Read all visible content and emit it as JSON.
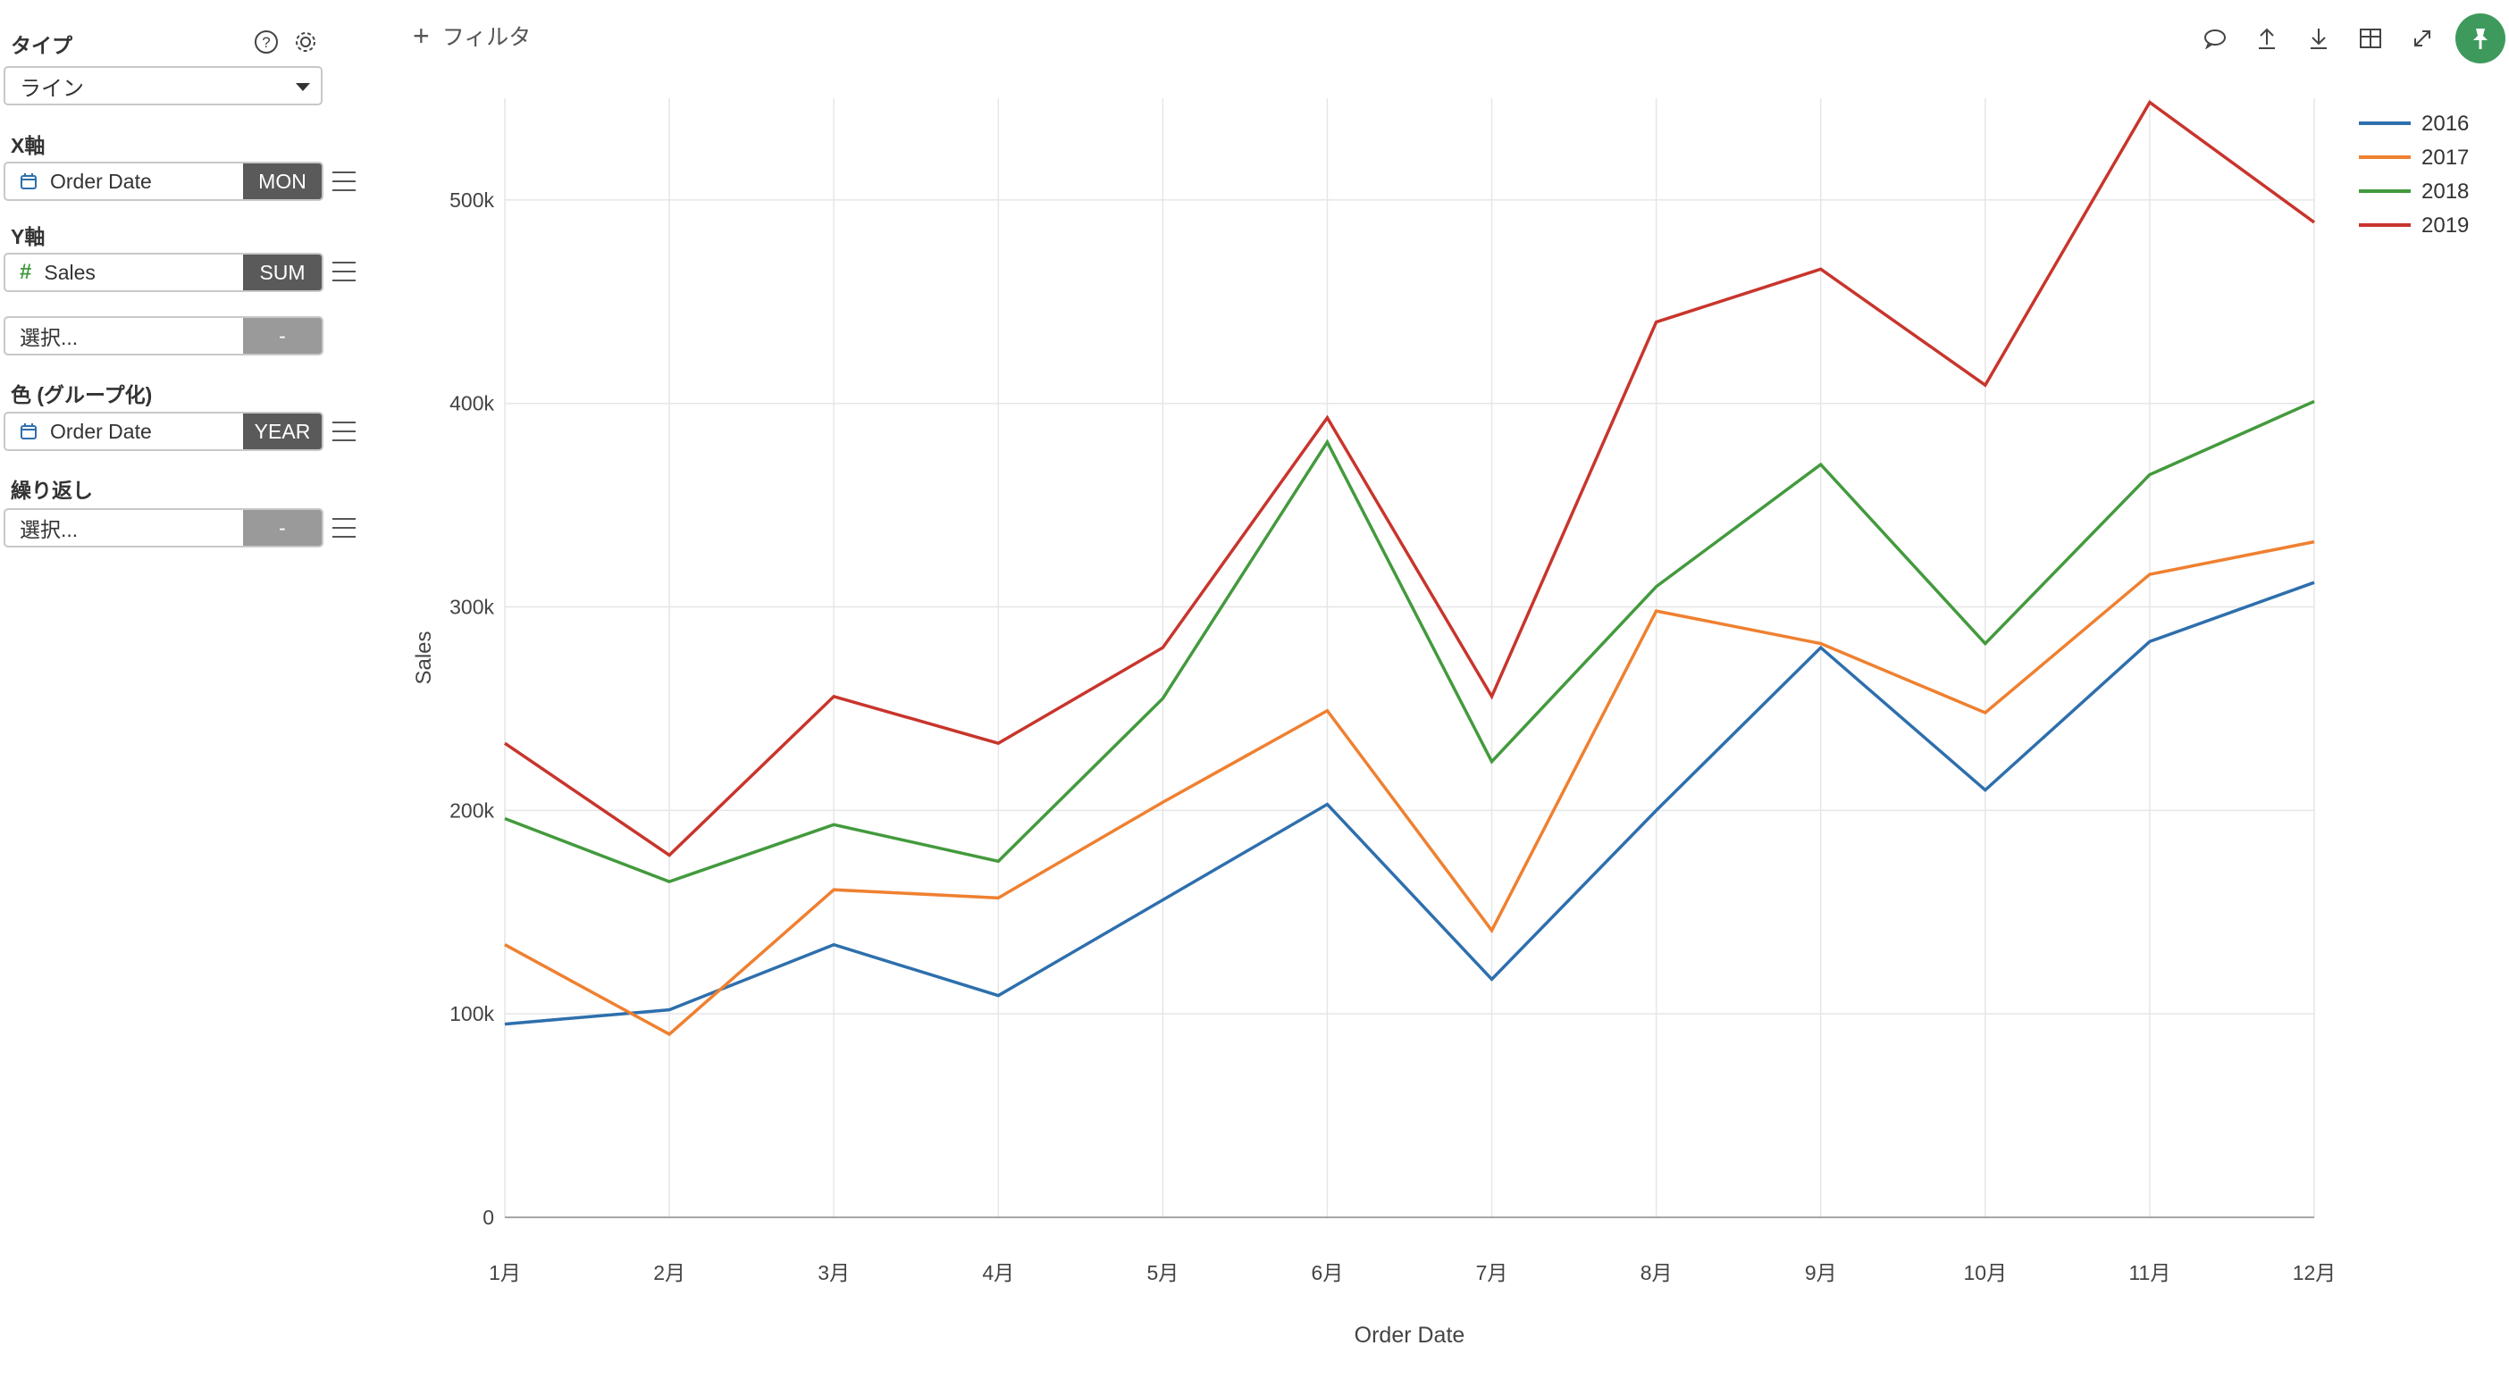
{
  "sidebar": {
    "type_label": "タイプ",
    "type_value": "ライン",
    "x_axis_label": "X軸",
    "x_field": {
      "name": "Order Date",
      "agg": "MON"
    },
    "y_axis_label": "Y軸",
    "y_field": {
      "name": "Sales",
      "agg": "SUM"
    },
    "y_field2": {
      "name": "選択...",
      "agg": "-"
    },
    "color_label": "色 (グループ化)",
    "color_field": {
      "name": "Order Date",
      "agg": "YEAR"
    },
    "repeat_label": "繰り返し",
    "repeat_field": {
      "name": "選択...",
      "agg": "-"
    }
  },
  "topbar": {
    "filter_label": "フィルタ"
  },
  "colors": {
    "s2016": "#2e6fad",
    "s2017": "#ef8030",
    "s2018": "#439a3d",
    "s2019": "#c8352c",
    "pin": "#3e9a5c"
  },
  "chart_data": {
    "type": "line",
    "xlabel": "Order Date",
    "ylabel": "Sales",
    "categories": [
      "1月",
      "2月",
      "3月",
      "4月",
      "5月",
      "6月",
      "7月",
      "8月",
      "9月",
      "10月",
      "11月",
      "12月"
    ],
    "y_ticks": [
      "0",
      "100k",
      "200k",
      "300k",
      "400k",
      "500k"
    ],
    "ylim": [
      0,
      550000
    ],
    "grid": true,
    "legend_position": "top-right",
    "series": [
      {
        "name": "2016",
        "values": [
          95000,
          102000,
          134000,
          109000,
          156000,
          203000,
          117000,
          200000,
          280000,
          210000,
          283000,
          312000
        ]
      },
      {
        "name": "2017",
        "values": [
          134000,
          90000,
          161000,
          157000,
          204000,
          249000,
          141000,
          298000,
          282000,
          248000,
          316000,
          332000
        ]
      },
      {
        "name": "2018",
        "values": [
          196000,
          165000,
          193000,
          175000,
          255000,
          381000,
          224000,
          310000,
          370000,
          282000,
          365000,
          401000
        ]
      },
      {
        "name": "2019",
        "values": [
          233000,
          178000,
          256000,
          233000,
          280000,
          393000,
          256000,
          440000,
          466000,
          409000,
          548000,
          489000
        ]
      }
    ]
  }
}
